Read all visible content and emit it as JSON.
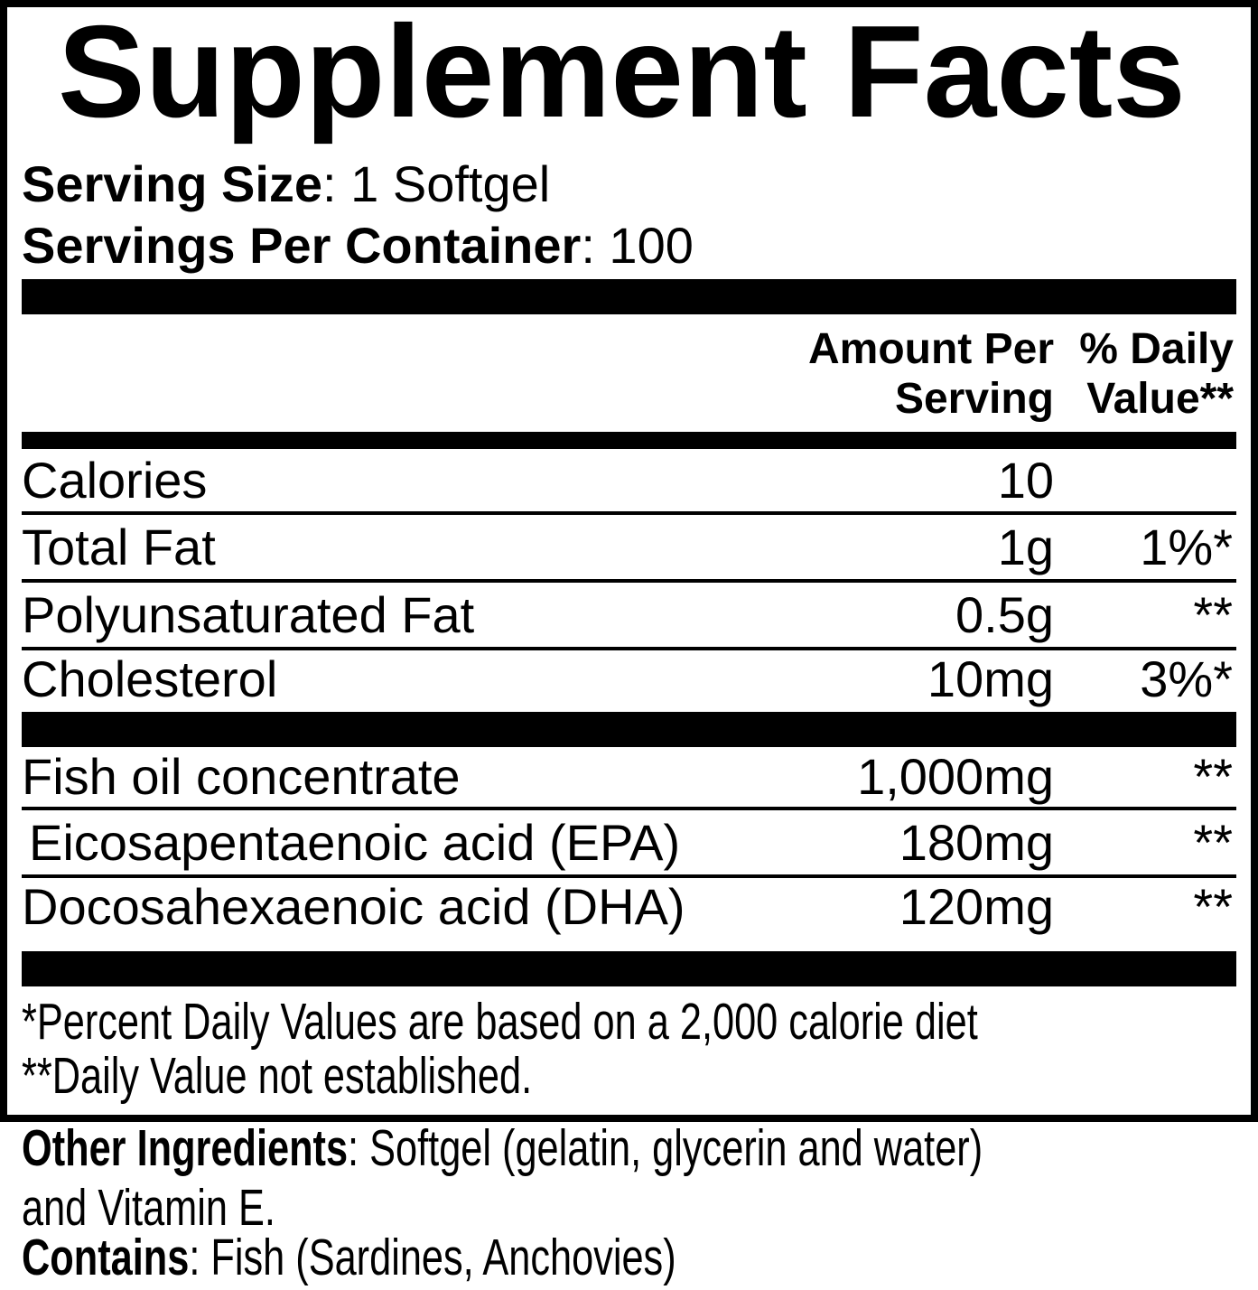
{
  "title": "Supplement Facts",
  "serving": {
    "size_label": "Serving Size",
    "size_rest": ": 1 Softgel",
    "container_label": "Servings Per Container",
    "container_rest": ": 100"
  },
  "columns": {
    "amount_line1": "Amount Per",
    "amount_line2": "Serving",
    "dv_line1": "% Daily",
    "dv_line2": "Value**"
  },
  "rows": [
    {
      "label": "Calories",
      "amount": "10",
      "dv": ""
    },
    {
      "label": "Total Fat",
      "amount": "1g",
      "dv": "1%*"
    },
    {
      "label": "Polyunsaturated Fat",
      "amount": "0.5g",
      "dv": "**"
    },
    {
      "label": "Cholesterol",
      "amount": "10mg",
      "dv": "3%*"
    },
    {
      "label": "Fish oil concentrate",
      "amount": "1,000mg",
      "dv": "**"
    },
    {
      "label": "Eicosapentaenoic acid (EPA)",
      "amount": "180mg",
      "dv": "**"
    },
    {
      "label": "Docosahexaenoic acid (DHA)",
      "amount": "120mg",
      "dv": "**"
    }
  ],
  "footnotes": [
    "*Percent Daily Values are based on a 2,000 calorie diet",
    "**Daily Value not established."
  ],
  "other": {
    "ingredients_label": "Other Ingredients",
    "ingredients_rest": ": Softgel (gelatin, glycerin and water)",
    "ingredients_line2": "and Vitamin E.",
    "contains_label": "Contains",
    "contains_rest": ": Fish (Sardines, Anchovies)"
  },
  "colors": {
    "ink": "#000000",
    "background": "#ffffff"
  }
}
